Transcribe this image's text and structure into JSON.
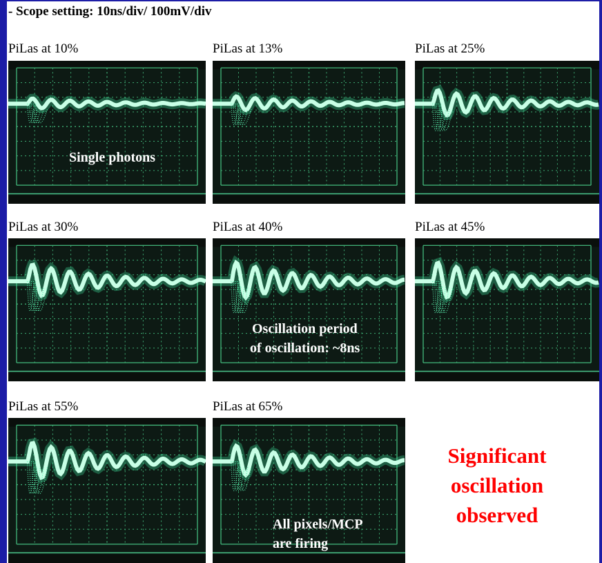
{
  "header": {
    "title": "- Scope setting: 10ns/div/ 100mV/div"
  },
  "panels": [
    {
      "label": "PiLas at 10%",
      "annotation": [
        "Single photons"
      ]
    },
    {
      "label": "PiLas at 13%"
    },
    {
      "label": "PiLas at 25%"
    },
    {
      "label": "PiLas at 30%"
    },
    {
      "label": "PiLas at 40%",
      "annotation": [
        "Oscillation period",
        "of oscillation: ~8ns"
      ]
    },
    {
      "label": "PiLas at 45%"
    },
    {
      "label": "PiLas at 55%"
    },
    {
      "label": "PiLas at 65%",
      "annotation": [
        "All pixels/MCP",
        "are firing"
      ]
    }
  ],
  "conclusion": [
    "Significant",
    "oscillation",
    "observed"
  ]
}
